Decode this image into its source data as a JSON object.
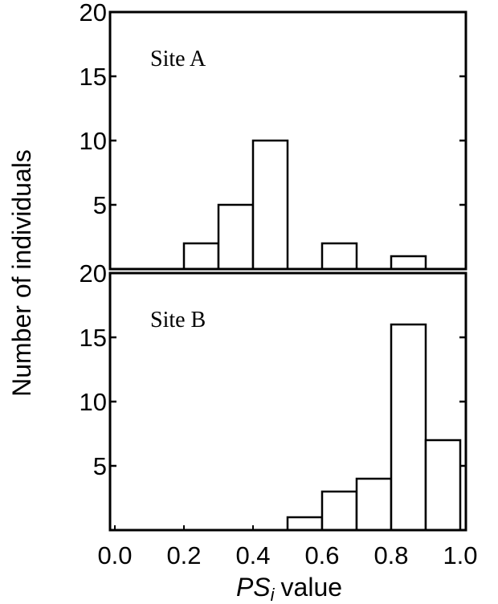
{
  "chart_data": [
    {
      "type": "histogram",
      "annotation": "Site A",
      "bins": [
        0,
        0.1,
        0.2,
        0.3,
        0.4,
        0.5,
        0.6,
        0.7,
        0.8,
        0.9,
        1
      ],
      "values": [
        0,
        0,
        2,
        5,
        10,
        0,
        2,
        0,
        1,
        0
      ],
      "color": "#ffffff",
      "ylabel": "Number of individuals",
      "xlim": [
        0,
        1
      ],
      "ylim": [
        0,
        20
      ],
      "yticks": [
        5,
        10,
        15,
        20
      ]
    },
    {
      "type": "histogram",
      "annotation": "Site B",
      "bins": [
        0,
        0.1,
        0.2,
        0.3,
        0.4,
        0.5,
        0.6,
        0.7,
        0.8,
        0.9,
        1
      ],
      "values": [
        0,
        0,
        0,
        0,
        0,
        1,
        3,
        4,
        16,
        7
      ],
      "color": "#ffffff",
      "xlabel": [
        "PS",
        "i",
        "value"
      ],
      "xlim": [
        0,
        1
      ],
      "ylim": [
        0,
        20
      ],
      "yticks": [
        5,
        10,
        15,
        20
      ],
      "xticks": [
        {
          "value": 0,
          "label": "0.0"
        },
        0.2,
        0.4,
        0.6,
        0.8,
        {
          "value": 1,
          "label": "1.0"
        }
      ]
    }
  ]
}
